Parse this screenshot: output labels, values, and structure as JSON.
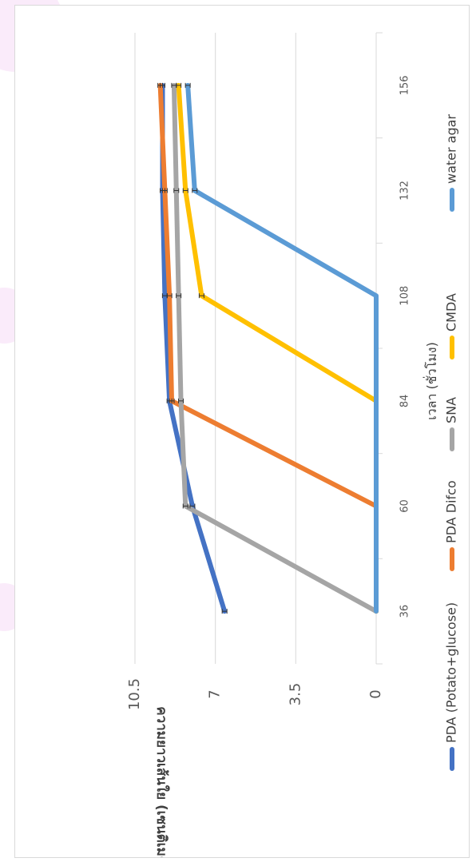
{
  "chart_data": {
    "type": "line",
    "orientation": "rotated-90-clockwise",
    "title": "",
    "xlabel": "เวลา (ชั่วโมง)",
    "ylabel": "ความยาวเส้นใย (เซนติเมตร)",
    "x": [
      36,
      60,
      84,
      108,
      132,
      156
    ],
    "x_tick_labels": [
      "36",
      "60",
      "84",
      "108",
      "132",
      "156"
    ],
    "ylim": [
      0,
      10.5
    ],
    "y_ticks": [
      0,
      3.5,
      7,
      10.5
    ],
    "y_tick_labels": [
      "0",
      "3.5",
      "7",
      "10.5"
    ],
    "grid": true,
    "error_bars": true,
    "legend_position": "bottom",
    "series": [
      {
        "name": "PDA (Potato+glucose)",
        "color": "#4472C4",
        "values": [
          6.6,
          8.0,
          9.0,
          9.2,
          9.3,
          9.3
        ]
      },
      {
        "name": "PDA Difco",
        "color": "#ED7D31",
        "values": [
          0,
          0,
          8.9,
          9.0,
          9.2,
          9.4
        ]
      },
      {
        "name": "SNA",
        "color": "#A5A5A5",
        "values": [
          0,
          8.3,
          8.5,
          8.6,
          8.7,
          8.8
        ]
      },
      {
        "name": "CMDA",
        "color": "#FFC000",
        "values": [
          0,
          0,
          0,
          7.6,
          8.3,
          8.6
        ]
      },
      {
        "name": "water agar",
        "color": "#5B9BD5",
        "values": [
          0,
          0,
          0,
          0,
          7.9,
          8.2
        ]
      }
    ]
  }
}
